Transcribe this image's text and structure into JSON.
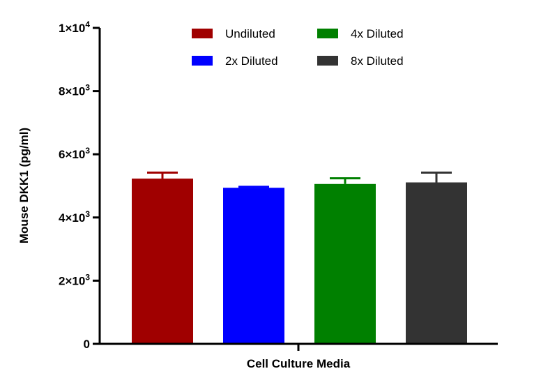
{
  "chart_data": {
    "type": "bar",
    "xlabel": "Cell Culture Media",
    "ylabel": "Mouse DKK1 (pg/ml)",
    "ylim": [
      0,
      10000
    ],
    "yticks": [
      {
        "value": 0,
        "mantissa": "0",
        "exp": ""
      },
      {
        "value": 2000,
        "mantissa": "2×10",
        "exp": "3"
      },
      {
        "value": 4000,
        "mantissa": "4×10",
        "exp": "3"
      },
      {
        "value": 6000,
        "mantissa": "6×10",
        "exp": "3"
      },
      {
        "value": 8000,
        "mantissa": "8×10",
        "exp": "3"
      },
      {
        "value": 10000,
        "mantissa": "1×10",
        "exp": "4"
      }
    ],
    "grid": false,
    "legend_position": "top",
    "series": [
      {
        "name": "Undiluted",
        "value": 5230,
        "error": 190,
        "color": "#A00000"
      },
      {
        "name": "2x Diluted",
        "value": 4940,
        "error": 30,
        "color": "#0000FF"
      },
      {
        "name": "4x Diluted",
        "value": 5060,
        "error": 180,
        "color": "#008000"
      },
      {
        "name": "8x Diluted",
        "value": 5110,
        "error": 310,
        "color": "#333333"
      }
    ]
  }
}
